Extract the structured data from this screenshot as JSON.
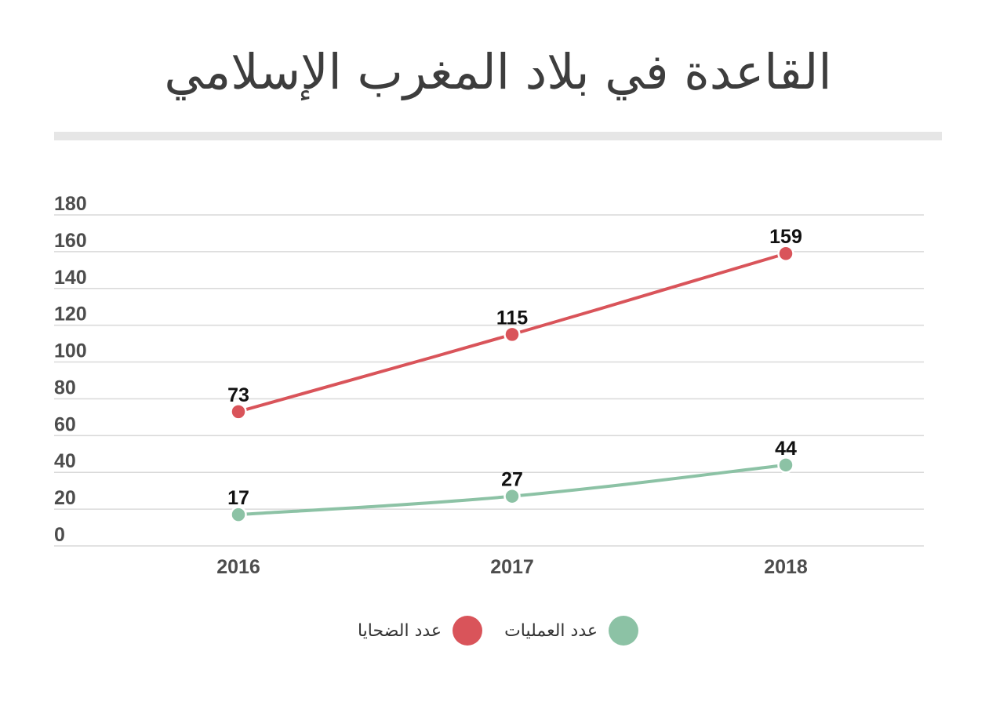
{
  "title": "القاعدة في بلاد المغرب الإسلامي",
  "chart_data": {
    "type": "line",
    "categories": [
      "2016",
      "2017",
      "2018"
    ],
    "ylim": [
      0,
      180
    ],
    "yticks": [
      0,
      20,
      40,
      60,
      80,
      100,
      120,
      140,
      160,
      180
    ],
    "grid": true,
    "legend_position": "bottom",
    "series": [
      {
        "name": "عدد الضحايا",
        "values": [
          73,
          115,
          159
        ],
        "color": "#d9545a"
      },
      {
        "name": "عدد العمليات",
        "values": [
          17,
          27,
          44
        ],
        "color": "#8cc2a5"
      }
    ]
  },
  "colors": {
    "title_rule": "#e6e6e6",
    "grid": "#d9d9d9"
  }
}
